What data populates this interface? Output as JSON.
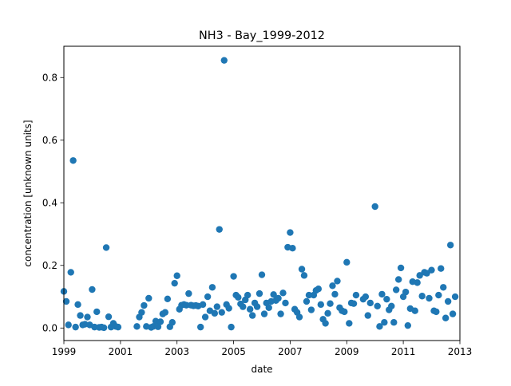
{
  "chart_data": {
    "type": "scatter",
    "title": "NH3 - Bay_1999-2012",
    "xlabel": "date",
    "ylabel": "concentration [unknown units]",
    "xlim": [
      "1999-01-01",
      "2013-01-01"
    ],
    "ylim": [
      -0.04,
      0.9
    ],
    "x_tick_labels": [
      "1999",
      "2001",
      "2003",
      "2005",
      "2007",
      "2009",
      "2011",
      "2013"
    ],
    "y_ticks": [
      0.0,
      0.2,
      0.4,
      0.6,
      0.8
    ],
    "y_tick_labels": [
      "0.0",
      "0.2",
      "0.4",
      "0.6",
      "0.8"
    ],
    "grid": false,
    "legend": "none",
    "marker_color": "#1f77b4",
    "points": [
      [
        "1999-01-01",
        0.117
      ],
      [
        "1999-02-01",
        0.085
      ],
      [
        "1999-03-01",
        0.01
      ],
      [
        "1999-04-01",
        0.178
      ],
      [
        "1999-05-01",
        0.535
      ],
      [
        "1999-06-01",
        0.003
      ],
      [
        "1999-07-01",
        0.075
      ],
      [
        "1999-08-01",
        0.04
      ],
      [
        "1999-09-01",
        0.01
      ],
      [
        "1999-10-01",
        0.012
      ],
      [
        "1999-11-01",
        0.035
      ],
      [
        "1999-12-01",
        0.01
      ],
      [
        "2000-01-01",
        0.123
      ],
      [
        "2000-02-01",
        0.003
      ],
      [
        "2000-03-01",
        0.052
      ],
      [
        "2000-04-01",
        0.002
      ],
      [
        "2000-05-01",
        0.003
      ],
      [
        "2000-06-01",
        0.001
      ],
      [
        "2000-07-01",
        0.257
      ],
      [
        "2000-08-01",
        0.036
      ],
      [
        "2000-09-01",
        0.003
      ],
      [
        "2000-10-01",
        0.015
      ],
      [
        "2000-11-01",
        0.005
      ],
      [
        "2000-12-01",
        0.003
      ],
      [
        "2001-08-01",
        0.005
      ],
      [
        "2001-09-01",
        0.035
      ],
      [
        "2001-10-01",
        0.05
      ],
      [
        "2001-11-01",
        0.072
      ],
      [
        "2001-12-01",
        0.005
      ],
      [
        "2002-01-01",
        0.095
      ],
      [
        "2002-02-01",
        0.002
      ],
      [
        "2002-03-01",
        0.005
      ],
      [
        "2002-04-01",
        0.022
      ],
      [
        "2002-05-01",
        0.004
      ],
      [
        "2002-06-01",
        0.02
      ],
      [
        "2002-07-01",
        0.045
      ],
      [
        "2002-08-01",
        0.05
      ],
      [
        "2002-09-01",
        0.093
      ],
      [
        "2002-10-01",
        0.004
      ],
      [
        "2002-11-01",
        0.018
      ],
      [
        "2002-12-01",
        0.143
      ],
      [
        "2003-01-01",
        0.167
      ],
      [
        "2003-02-01",
        0.06
      ],
      [
        "2003-03-01",
        0.073
      ],
      [
        "2003-04-01",
        0.075
      ],
      [
        "2003-05-01",
        0.073
      ],
      [
        "2003-06-01",
        0.11
      ],
      [
        "2003-07-01",
        0.073
      ],
      [
        "2003-08-01",
        0.071
      ],
      [
        "2003-09-01",
        0.072
      ],
      [
        "2003-10-01",
        0.07
      ],
      [
        "2003-11-01",
        0.003
      ],
      [
        "2003-12-01",
        0.075
      ],
      [
        "2004-01-01",
        0.035
      ],
      [
        "2004-02-01",
        0.1
      ],
      [
        "2004-03-01",
        0.055
      ],
      [
        "2004-04-01",
        0.13
      ],
      [
        "2004-05-01",
        0.047
      ],
      [
        "2004-06-01",
        0.068
      ],
      [
        "2004-07-01",
        0.315
      ],
      [
        "2004-08-01",
        0.05
      ],
      [
        "2004-09-01",
        0.855
      ],
      [
        "2004-10-01",
        0.075
      ],
      [
        "2004-11-01",
        0.063
      ],
      [
        "2004-12-01",
        0.003
      ],
      [
        "2005-01-01",
        0.165
      ],
      [
        "2005-02-01",
        0.105
      ],
      [
        "2005-03-01",
        0.098
      ],
      [
        "2005-04-01",
        0.077
      ],
      [
        "2005-05-01",
        0.068
      ],
      [
        "2005-06-01",
        0.09
      ],
      [
        "2005-07-01",
        0.105
      ],
      [
        "2005-08-01",
        0.06
      ],
      [
        "2005-09-01",
        0.04
      ],
      [
        "2005-10-01",
        0.08
      ],
      [
        "2005-11-01",
        0.068
      ],
      [
        "2005-12-01",
        0.11
      ],
      [
        "2006-01-01",
        0.17
      ],
      [
        "2006-02-01",
        0.045
      ],
      [
        "2006-03-01",
        0.08
      ],
      [
        "2006-04-01",
        0.065
      ],
      [
        "2006-05-01",
        0.085
      ],
      [
        "2006-06-01",
        0.107
      ],
      [
        "2006-07-01",
        0.088
      ],
      [
        "2006-08-01",
        0.095
      ],
      [
        "2006-09-01",
        0.045
      ],
      [
        "2006-10-01",
        0.112
      ],
      [
        "2006-11-01",
        0.08
      ],
      [
        "2006-12-01",
        0.258
      ],
      [
        "2007-01-01",
        0.305
      ],
      [
        "2007-02-01",
        0.255
      ],
      [
        "2007-03-01",
        0.06
      ],
      [
        "2007-04-01",
        0.05
      ],
      [
        "2007-05-01",
        0.035
      ],
      [
        "2007-06-01",
        0.188
      ],
      [
        "2007-07-01",
        0.168
      ],
      [
        "2007-08-01",
        0.085
      ],
      [
        "2007-09-01",
        0.105
      ],
      [
        "2007-10-01",
        0.058
      ],
      [
        "2007-11-01",
        0.105
      ],
      [
        "2007-12-01",
        0.12
      ],
      [
        "2008-01-01",
        0.125
      ],
      [
        "2008-02-01",
        0.075
      ],
      [
        "2008-03-01",
        0.028
      ],
      [
        "2008-04-01",
        0.015
      ],
      [
        "2008-05-01",
        0.047
      ],
      [
        "2008-06-01",
        0.078
      ],
      [
        "2008-07-01",
        0.135
      ],
      [
        "2008-08-01",
        0.108
      ],
      [
        "2008-09-01",
        0.15
      ],
      [
        "2008-10-01",
        0.065
      ],
      [
        "2008-11-01",
        0.055
      ],
      [
        "2008-12-01",
        0.052
      ],
      [
        "2009-01-01",
        0.21
      ],
      [
        "2009-02-01",
        0.015
      ],
      [
        "2009-03-01",
        0.08
      ],
      [
        "2009-04-01",
        0.078
      ],
      [
        "2009-05-01",
        0.105
      ],
      [
        "2009-08-01",
        0.092
      ],
      [
        "2009-09-01",
        0.1
      ],
      [
        "2009-10-01",
        0.04
      ],
      [
        "2009-11-01",
        0.08
      ],
      [
        "2010-01-01",
        0.388
      ],
      [
        "2010-02-01",
        0.07
      ],
      [
        "2010-03-01",
        0.005
      ],
      [
        "2010-04-01",
        0.108
      ],
      [
        "2010-05-01",
        0.018
      ],
      [
        "2010-06-01",
        0.092
      ],
      [
        "2010-07-01",
        0.058
      ],
      [
        "2010-08-01",
        0.07
      ],
      [
        "2010-09-01",
        0.018
      ],
      [
        "2010-10-01",
        0.122
      ],
      [
        "2010-11-01",
        0.155
      ],
      [
        "2010-12-01",
        0.192
      ],
      [
        "2011-01-01",
        0.1
      ],
      [
        "2011-02-01",
        0.115
      ],
      [
        "2011-03-01",
        0.008
      ],
      [
        "2011-04-01",
        0.062
      ],
      [
        "2011-05-01",
        0.148
      ],
      [
        "2011-06-01",
        0.055
      ],
      [
        "2011-07-01",
        0.145
      ],
      [
        "2011-08-01",
        0.168
      ],
      [
        "2011-09-01",
        0.102
      ],
      [
        "2011-10-01",
        0.178
      ],
      [
        "2011-11-01",
        0.175
      ],
      [
        "2011-12-01",
        0.095
      ],
      [
        "2012-01-01",
        0.185
      ],
      [
        "2012-02-01",
        0.055
      ],
      [
        "2012-03-01",
        0.052
      ],
      [
        "2012-04-01",
        0.105
      ],
      [
        "2012-05-01",
        0.19
      ],
      [
        "2012-06-01",
        0.13
      ],
      [
        "2012-07-01",
        0.032
      ],
      [
        "2012-08-01",
        0.085
      ],
      [
        "2012-09-01",
        0.265
      ],
      [
        "2012-10-01",
        0.045
      ],
      [
        "2012-11-01",
        0.1
      ]
    ]
  }
}
